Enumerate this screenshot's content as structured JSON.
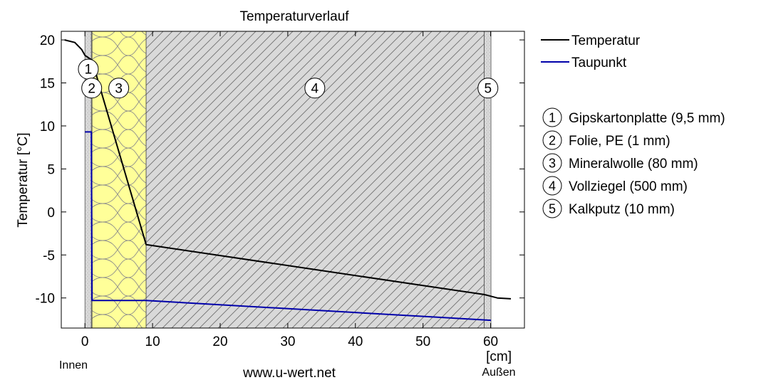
{
  "chart_data": {
    "type": "line",
    "title": "Temperaturverlauf",
    "xlabel": "",
    "x_unit_label": "[cm]",
    "ylabel": "Temperatur [°C]",
    "xlim": [
      -3.5,
      65
    ],
    "ylim": [
      -13.5,
      21
    ],
    "x_ticks": [
      0,
      10,
      20,
      30,
      40,
      50,
      60
    ],
    "y_ticks": [
      20,
      15,
      10,
      5,
      0,
      -5,
      -10
    ],
    "grid": false,
    "legend_position": "right",
    "inside_label": "Innen",
    "outside_label": "Außen",
    "watermark": "www.u-wert.net",
    "layers": [
      {
        "num": "1",
        "name": "Gipskartonplatte (9,5 mm)",
        "x0": 0,
        "x1": 0.95,
        "fill": "#d9d9d9",
        "hatch": "dots"
      },
      {
        "num": "2",
        "name": "Folie, PE (1 mm)",
        "x0": 0.95,
        "x1": 1.05,
        "fill": "#ffffff",
        "hatch": "none"
      },
      {
        "num": "3",
        "name": "Mineralwolle (80 mm)",
        "x0": 1.05,
        "x1": 9.05,
        "fill": "#ffff99",
        "hatch": "wool"
      },
      {
        "num": "4",
        "name": "Vollziegel (500 mm)",
        "x0": 9.05,
        "x1": 59.05,
        "fill": "#d9d9d9",
        "hatch": "diagonal"
      },
      {
        "num": "5",
        "name": "Kalkputz (10 mm)",
        "x0": 59.05,
        "x1": 60.05,
        "fill": "#d9d9d9",
        "hatch": "dots"
      }
    ],
    "layer_markers": [
      {
        "num": "1",
        "x": 0.5,
        "y": 16.6
      },
      {
        "num": "2",
        "x": 1.0,
        "y": 14.4
      },
      {
        "num": "3",
        "x": 5.0,
        "y": 14.4
      },
      {
        "num": "4",
        "x": 34.0,
        "y": 14.4
      },
      {
        "num": "5",
        "x": 59.6,
        "y": 14.4
      }
    ],
    "series": [
      {
        "name": "Temperatur",
        "color": "#000000",
        "x": [
          -3.0,
          -1.5,
          -0.5,
          0.0,
          0.95,
          1.05,
          9.05,
          59.05,
          60.05,
          61.0,
          63.0
        ],
        "y": [
          20.0,
          19.7,
          18.9,
          18.2,
          17.7,
          17.6,
          -3.8,
          -9.6,
          -9.8,
          -10.0,
          -10.1
        ]
      },
      {
        "name": "Taupunkt",
        "color": "#0000aa",
        "x": [
          0.0,
          0.95,
          1.05,
          9.05,
          60.05
        ],
        "y": [
          9.3,
          9.3,
          -10.3,
          -10.3,
          -12.6
        ]
      }
    ]
  }
}
